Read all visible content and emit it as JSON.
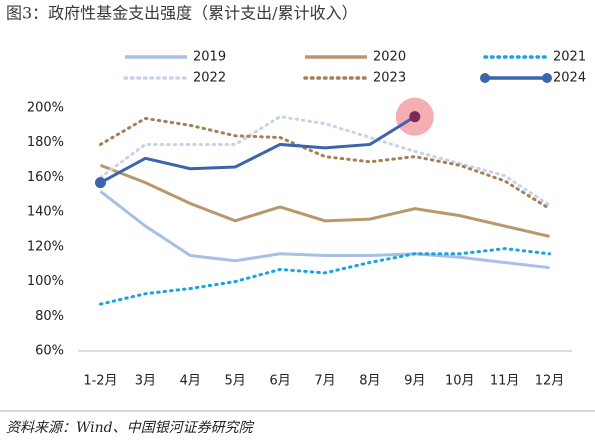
{
  "chart_data": {
    "type": "line",
    "title": "图3：政府性基金支出强度（累计支出/累计收入）",
    "source": "资料来源：Wind、中国银河证券研究院",
    "categories": [
      "1-2月",
      "3月",
      "4月",
      "5月",
      "6月",
      "7月",
      "8月",
      "9月",
      "10月",
      "11月",
      "12月"
    ],
    "ylim": [
      60,
      200
    ],
    "yticks": [
      {
        "value": 60,
        "label": "60%"
      },
      {
        "value": 80,
        "label": "80%"
      },
      {
        "value": 100,
        "label": "100%"
      },
      {
        "value": 120,
        "label": "120%"
      },
      {
        "value": 140,
        "label": "140%"
      },
      {
        "value": 160,
        "label": "160%"
      },
      {
        "value": 180,
        "label": "180%"
      },
      {
        "value": 200,
        "label": "200%"
      }
    ],
    "series": [
      {
        "name": "2019",
        "color": "#a9bfe6",
        "dash": "solid",
        "values": [
          152,
          132,
          115,
          112,
          116,
          115,
          115,
          116,
          114,
          111,
          108
        ]
      },
      {
        "name": "2020",
        "color": "#b8976a",
        "dash": "solid",
        "values": [
          167,
          157,
          145,
          135,
          143,
          135,
          136,
          142,
          138,
          132,
          126
        ]
      },
      {
        "name": "2021",
        "color": "#1aa3e0",
        "dash": "dotted",
        "values": [
          87,
          93,
          96,
          100,
          107,
          105,
          111,
          116,
          116,
          119,
          116
        ]
      },
      {
        "name": "2022",
        "color": "#c8d3ea",
        "dash": "dotted",
        "values": [
          160,
          179,
          179,
          179,
          195,
          191,
          183,
          175,
          168,
          161,
          144
        ]
      },
      {
        "name": "2023",
        "color": "#a57f57",
        "dash": "dotted",
        "values": [
          179,
          194,
          190,
          184,
          183,
          172,
          169,
          172,
          167,
          158,
          142
        ]
      },
      {
        "name": "2024",
        "color": "#3b64ad",
        "dash": "solid",
        "markers": true,
        "values": [
          157,
          171,
          165,
          166,
          179,
          177,
          179,
          195,
          null,
          null,
          null
        ]
      }
    ]
  }
}
